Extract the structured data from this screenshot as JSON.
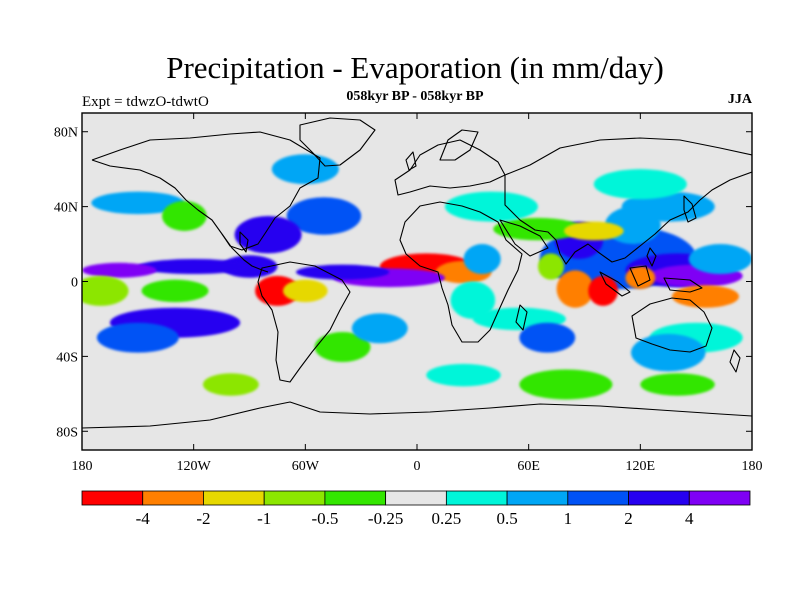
{
  "title": "Precipitation - Evaporation (in mm/day)",
  "expt_label": "Expt = tdwzO-tdwtO",
  "subtitle": "058kyr BP - 058kyr BP",
  "season": "JJA",
  "colors": {
    "land_background": "#e6e6e6",
    "frame": "#000000",
    "coast": "#000000"
  },
  "map": {
    "lon_range": [
      -180,
      180
    ],
    "lat_range": [
      -90,
      90
    ],
    "lat_ticks": [
      {
        "value": 80,
        "label": "80N"
      },
      {
        "value": 40,
        "label": "40N"
      },
      {
        "value": 0,
        "label": "0"
      },
      {
        "value": -40,
        "label": "40S"
      },
      {
        "value": -80,
        "label": "80S"
      }
    ],
    "lon_ticks": [
      {
        "value": -180,
        "label": "180"
      },
      {
        "value": -120,
        "label": "120W"
      },
      {
        "value": -60,
        "label": "60W"
      },
      {
        "value": 0,
        "label": "0"
      },
      {
        "value": 60,
        "label": "60E"
      },
      {
        "value": 120,
        "label": "120E"
      },
      {
        "value": 180,
        "label": "180"
      }
    ]
  },
  "colorbar": {
    "colors": [
      "#ff0000",
      "#ff7f00",
      "#e6d800",
      "#8ce600",
      "#33e600",
      "#e6e6e6",
      "#00f5d9",
      "#00a6f5",
      "#0052f5",
      "#2600f0",
      "#7f00f5"
    ],
    "labels": [
      "-4",
      "-2",
      "-1",
      "-0.5",
      "-0.25",
      "0.25",
      "0.5",
      "1",
      "2",
      "4"
    ]
  },
  "field_regions": [
    {
      "lon": 108,
      "lat": 13,
      "rx": 42,
      "ry": 17,
      "level": 8
    },
    {
      "lon": 140,
      "lat": 6,
      "rx": 28,
      "ry": 9,
      "level": 9
    },
    {
      "lon": 150,
      "lat": 3,
      "rx": 25,
      "ry": 6,
      "level": 10
    },
    {
      "lon": 163,
      "lat": 12,
      "rx": 17,
      "ry": 8,
      "level": 7
    },
    {
      "lon": 116,
      "lat": 30,
      "rx": 15,
      "ry": 10,
      "level": 7
    },
    {
      "lon": 135,
      "lat": 40,
      "rx": 25,
      "ry": 8,
      "level": 7
    },
    {
      "lon": 120,
      "lat": 52,
      "rx": 25,
      "ry": 8,
      "level": 6
    },
    {
      "lon": 87,
      "lat": 22,
      "rx": 13,
      "ry": 10,
      "level": 9
    },
    {
      "lon": 65,
      "lat": 28,
      "rx": 24,
      "ry": 6,
      "level": 4
    },
    {
      "lon": 95,
      "lat": 27,
      "rx": 16,
      "ry": 5,
      "level": 2
    },
    {
      "lon": 72,
      "lat": 8,
      "rx": 7,
      "ry": 7,
      "level": 3
    },
    {
      "lon": 85,
      "lat": -4,
      "rx": 10,
      "ry": 10,
      "level": 1
    },
    {
      "lon": 100,
      "lat": -5,
      "rx": 8,
      "ry": 8,
      "level": 0
    },
    {
      "lon": 120,
      "lat": 2,
      "rx": 8,
      "ry": 6,
      "level": 1
    },
    {
      "lon": 155,
      "lat": -8,
      "rx": 18,
      "ry": 6,
      "level": 1
    },
    {
      "lon": 150,
      "lat": -30,
      "rx": 25,
      "ry": 8,
      "level": 6
    },
    {
      "lon": 135,
      "lat": -38,
      "rx": 20,
      "ry": 10,
      "level": 7
    },
    {
      "lon": 5,
      "lat": 8,
      "rx": 25,
      "ry": 7,
      "level": 0
    },
    {
      "lon": 25,
      "lat": 5,
      "rx": 15,
      "ry": 6,
      "level": 1
    },
    {
      "lon": 35,
      "lat": 12,
      "rx": 10,
      "ry": 8,
      "level": 7
    },
    {
      "lon": 30,
      "lat": -10,
      "rx": 12,
      "ry": 10,
      "level": 6
    },
    {
      "lon": 40,
      "lat": 40,
      "rx": 25,
      "ry": 8,
      "level": 6
    },
    {
      "lon": -15,
      "lat": 2,
      "rx": 30,
      "ry": 5,
      "level": 10
    },
    {
      "lon": -40,
      "lat": 5,
      "rx": 25,
      "ry": 4,
      "level": 9
    },
    {
      "lon": -50,
      "lat": 35,
      "rx": 20,
      "ry": 10,
      "level": 8
    },
    {
      "lon": -80,
      "lat": 25,
      "rx": 18,
      "ry": 10,
      "level": 9
    },
    {
      "lon": -90,
      "lat": 8,
      "rx": 15,
      "ry": 6,
      "level": 9
    },
    {
      "lon": -75,
      "lat": -5,
      "rx": 12,
      "ry": 8,
      "level": 0
    },
    {
      "lon": -60,
      "lat": -5,
      "rx": 12,
      "ry": 6,
      "level": 2
    },
    {
      "lon": -120,
      "lat": 8,
      "rx": 30,
      "ry": 4,
      "level": 9
    },
    {
      "lon": -160,
      "lat": 6,
      "rx": 20,
      "ry": 4,
      "level": 10
    },
    {
      "lon": -130,
      "lat": -22,
      "rx": 35,
      "ry": 8,
      "level": 9
    },
    {
      "lon": -150,
      "lat": -30,
      "rx": 22,
      "ry": 8,
      "level": 8
    },
    {
      "lon": -170,
      "lat": -5,
      "rx": 15,
      "ry": 8,
      "level": 3
    },
    {
      "lon": -130,
      "lat": -5,
      "rx": 18,
      "ry": 6,
      "level": 4
    },
    {
      "lon": -150,
      "lat": 42,
      "rx": 25,
      "ry": 6,
      "level": 7
    },
    {
      "lon": -125,
      "lat": 35,
      "rx": 12,
      "ry": 8,
      "level": 4
    },
    {
      "lon": -60,
      "lat": 60,
      "rx": 18,
      "ry": 8,
      "level": 7
    },
    {
      "lon": -40,
      "lat": -35,
      "rx": 15,
      "ry": 8,
      "level": 4
    },
    {
      "lon": -20,
      "lat": -25,
      "rx": 15,
      "ry": 8,
      "level": 7
    },
    {
      "lon": 55,
      "lat": -20,
      "rx": 25,
      "ry": 6,
      "level": 6
    },
    {
      "lon": 70,
      "lat": -30,
      "rx": 15,
      "ry": 8,
      "level": 8
    },
    {
      "lon": 80,
      "lat": -55,
      "rx": 25,
      "ry": 8,
      "level": 4
    },
    {
      "lon": 25,
      "lat": -50,
      "rx": 20,
      "ry": 6,
      "level": 6
    },
    {
      "lon": -100,
      "lat": -55,
      "rx": 15,
      "ry": 6,
      "level": 3
    },
    {
      "lon": 140,
      "lat": -55,
      "rx": 20,
      "ry": 6,
      "level": 4
    }
  ]
}
